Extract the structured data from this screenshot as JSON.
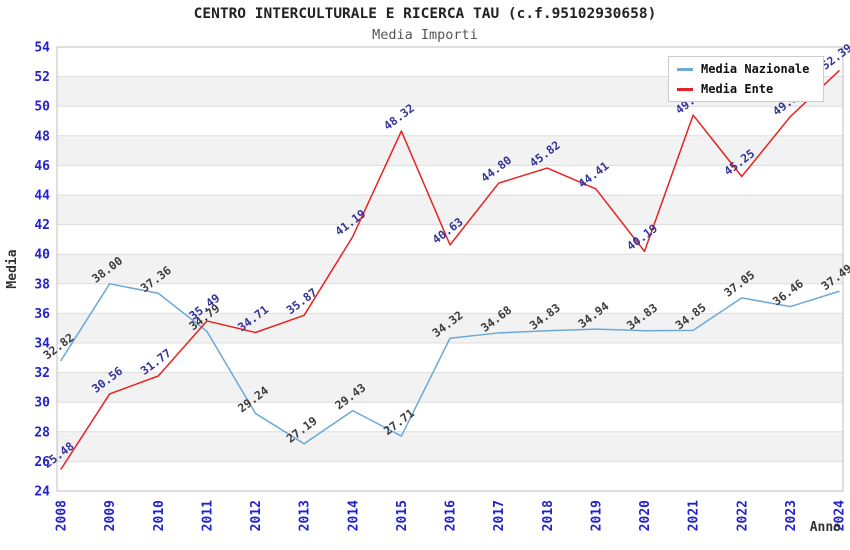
{
  "chart_data": {
    "type": "line",
    "title": "CENTRO INTERCULTURALE E RICERCA TAU (c.f.95102930658)",
    "subtitle": "Media Importi",
    "xlabel": "Anno",
    "ylabel": "Media",
    "ylim": [
      24,
      54
    ],
    "ytick_step": 2,
    "grid": true,
    "legend_position": "top-right",
    "categories": [
      2008,
      2009,
      2010,
      2011,
      2012,
      2013,
      2014,
      2015,
      2016,
      2017,
      2018,
      2019,
      2020,
      2021,
      2022,
      2023,
      2024
    ],
    "series": [
      {
        "name": "Media Nazionale",
        "color": "#6CA9D8",
        "label_color": "#3B3B3B",
        "values": [
          32.82,
          38.0,
          37.36,
          34.79,
          29.24,
          27.19,
          29.43,
          27.71,
          34.32,
          34.68,
          34.83,
          34.94,
          34.83,
          34.85,
          37.05,
          36.46,
          37.49
        ]
      },
      {
        "name": "Media Ente",
        "color": "#E62222",
        "label_color": "#333399",
        "values": [
          25.48,
          30.56,
          31.77,
          35.49,
          34.71,
          35.87,
          41.19,
          48.32,
          40.63,
          44.8,
          45.82,
          44.41,
          40.19,
          49.4,
          45.25,
          49.3,
          52.39
        ]
      }
    ],
    "colors": {
      "axis_tick": "#2222CC",
      "grid": "#DDDDDD",
      "band": "#F2F2F2",
      "border": "#BFBFBF",
      "axis_title": "#333333",
      "legend_border": "#CCCCCC",
      "background": "#FFFFFF"
    }
  }
}
